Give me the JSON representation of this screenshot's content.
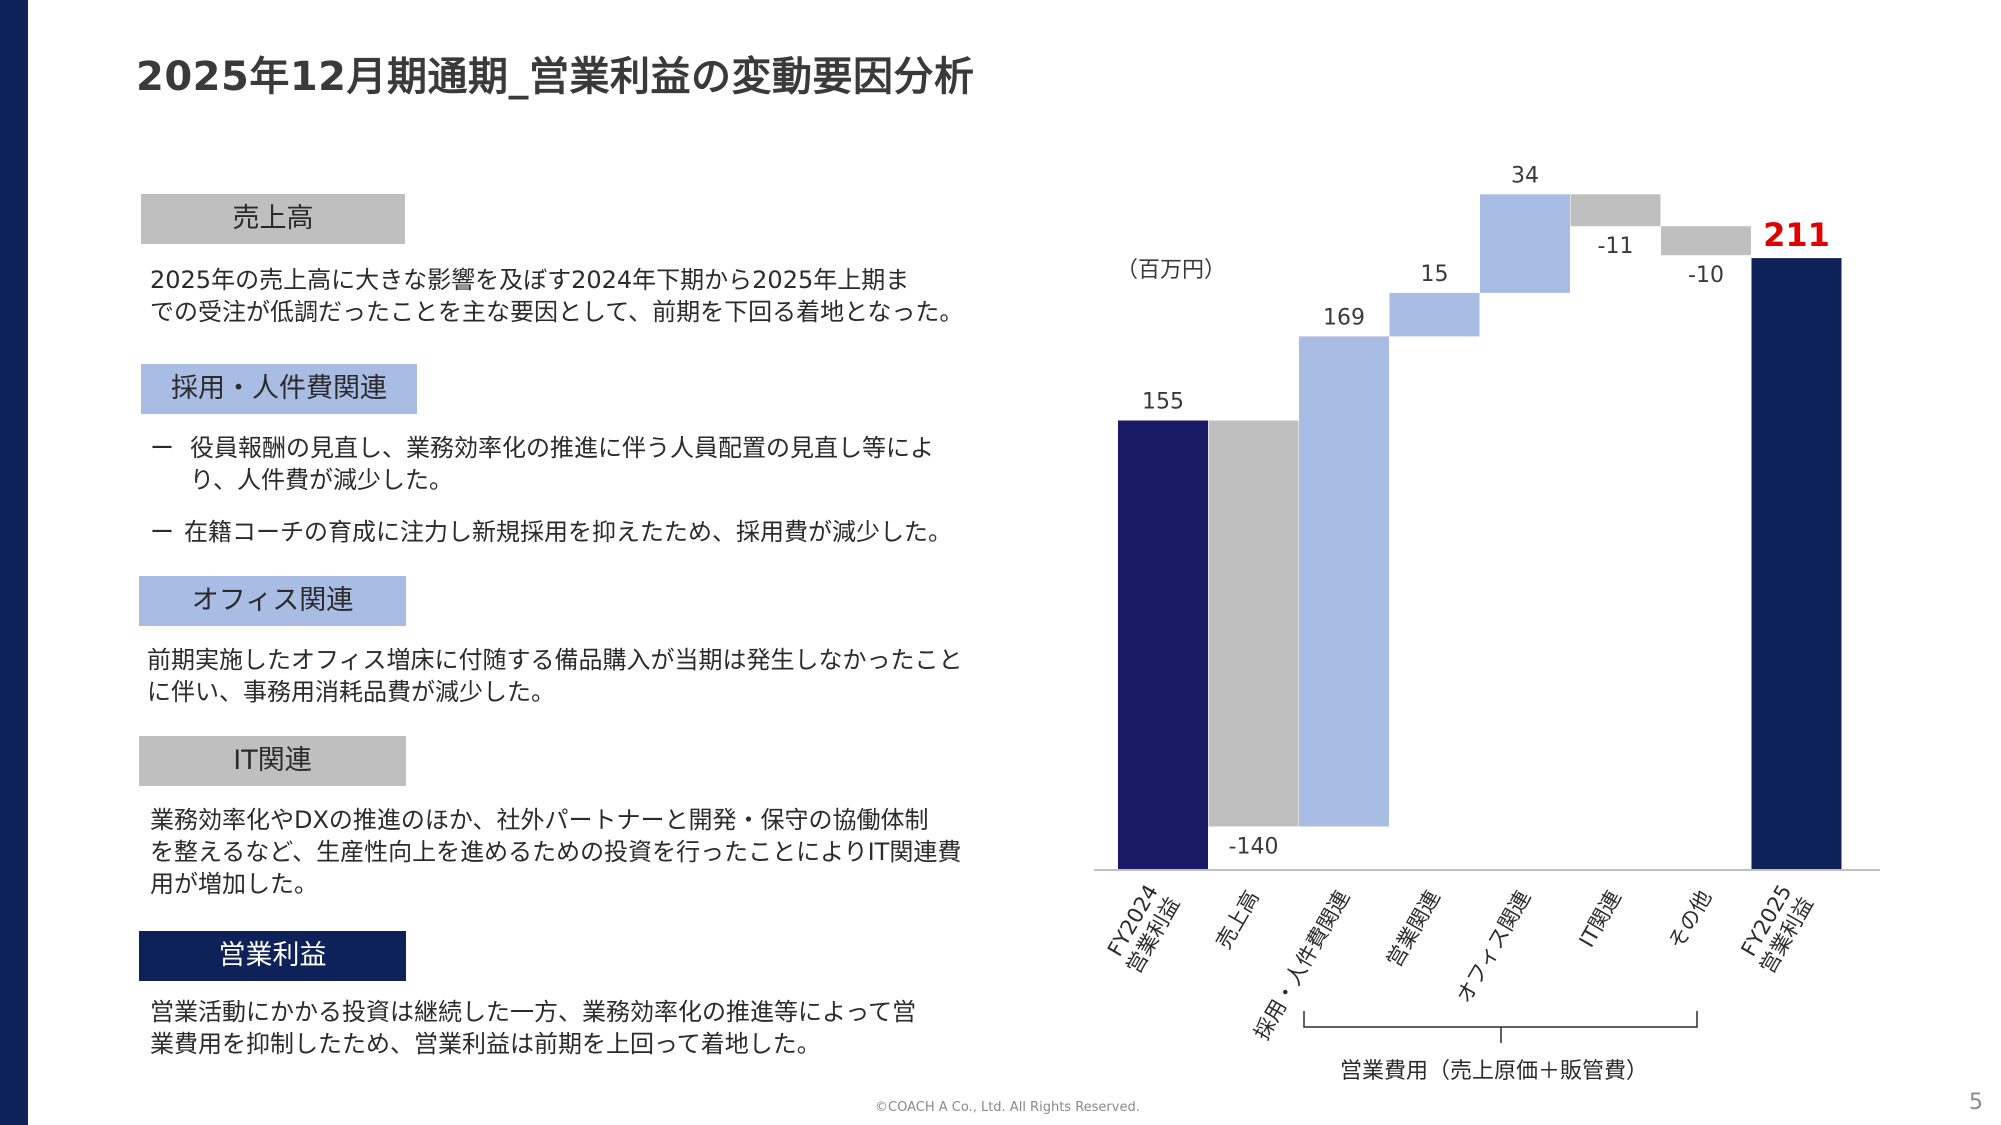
{
  "title": "2025年12月期通期_営業利益の変動要因分析",
  "sections": {
    "sales": {
      "heading": "売上高",
      "line1": "2025年の売上高に大きな影響を及ぼす2024年下期から2025年上期ま",
      "line2": "での受注が低調だったことを主な要因として、前期を下回る着地となった。"
    },
    "personnel": {
      "heading": "採用・人件費関連",
      "dash": "ー",
      "bullet1": "役員報酬の見直し、業務効率化の推進に伴う人員配置の見直し等により、人件費が減少した。",
      "bullet2": "在籍コーチの育成に注力し新規採用を抑えたため、採用費が減少した。"
    },
    "office": {
      "heading": "オフィス関連",
      "line1": "前期実施したオフィス増床に付随する備品購入が当期は発生しなかったこと",
      "line2": "に伴い、事務用消耗品費が減少した。"
    },
    "it": {
      "heading": "IT関連",
      "line1": "業務効率化やDXの推進のほか、社外パートナーと開発・保守の協働体制",
      "line2": "を整えるなど、生産性向上を進めるための投資を行ったことによりIT関連費",
      "line3": "用が増加した。"
    },
    "profit": {
      "heading": "営業利益",
      "line1": "営業活動にかかる投資は継続した一方、業務効率化の推進等によって営",
      "line2": "業費用を抑制したため、営業利益は前期を上回って着地した。"
    }
  },
  "chart_data": {
    "type": "waterfall",
    "unit_label": "（百万円）",
    "categories": [
      "FY2024\n営業利益",
      "売上高",
      "採用・人件費関連",
      "営業関連",
      "オフィス関連",
      "IT関連",
      "その他",
      "FY2025\n営業利益"
    ],
    "values": [
      155,
      -140,
      169,
      15,
      34,
      -11,
      -10,
      211
    ],
    "labels": [
      "155",
      "-140",
      "169",
      "15",
      "34",
      "-11",
      "-10",
      "211"
    ],
    "kinds": [
      "total",
      "delta",
      "delta",
      "delta",
      "delta",
      "delta",
      "delta",
      "total"
    ],
    "colors": [
      "#1a1a66",
      "#bfbfbf",
      "#a9bce3",
      "#a9bce3",
      "#a9bce3",
      "#bfbfbf",
      "#bfbfbf",
      "#0e2159"
    ],
    "highlight_label_color": "#e00000",
    "bracket_label": "営業費用（売上原価＋販管費）",
    "ylim": [
      0,
      240
    ]
  },
  "footer": "©COACH A Co., Ltd. All Rights Reserved.",
  "page_number": "5"
}
